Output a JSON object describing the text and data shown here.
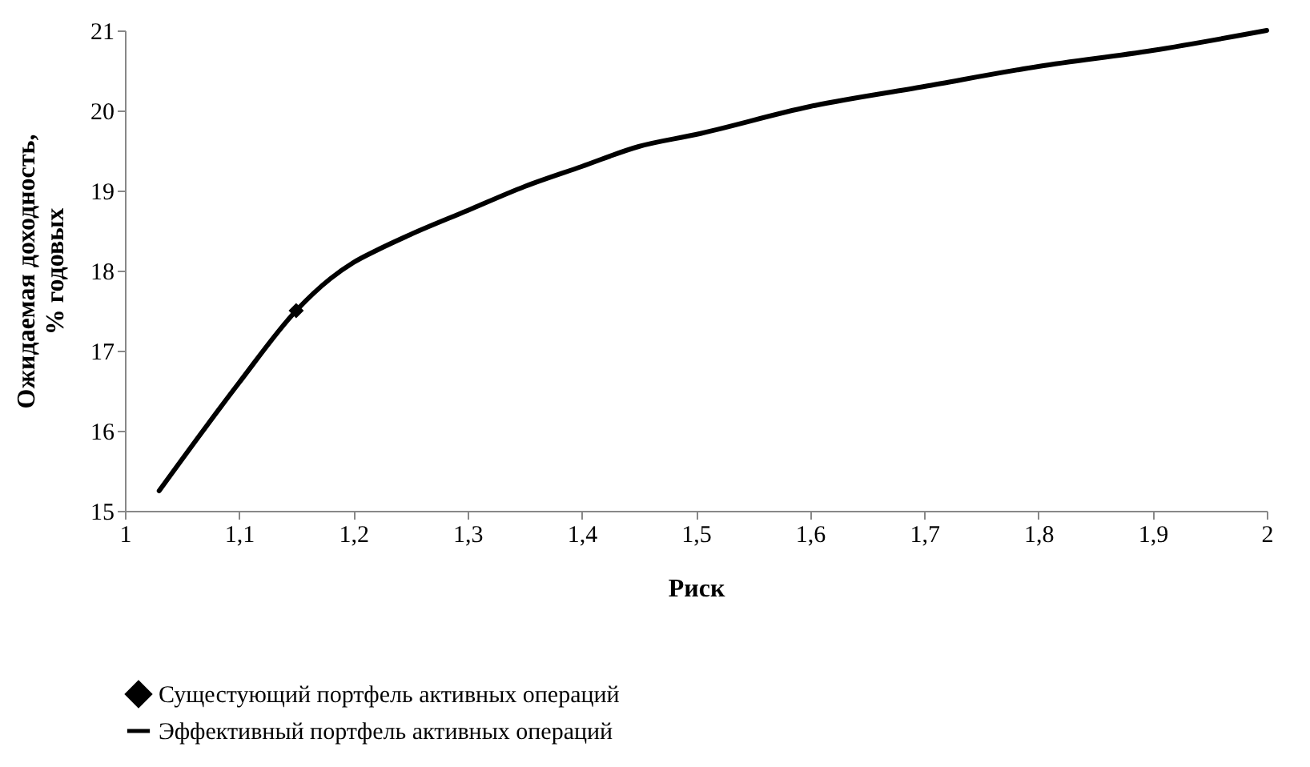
{
  "chart_data": {
    "type": "line",
    "xlabel": "Риск",
    "ylabel": "Ожидаемая доходность, % годовых",
    "xlim": [
      1,
      2
    ],
    "xticks": [
      1,
      {
        "value": 1.1,
        "label": "1,1"
      },
      {
        "value": 1.2,
        "label": "1,2"
      },
      {
        "value": 1.3,
        "label": "1,3"
      },
      {
        "value": 1.4,
        "label": "1,4"
      },
      {
        "value": 1.5,
        "label": "1,5"
      },
      {
        "value": 1.6,
        "label": "1,6"
      },
      {
        "value": 1.7,
        "label": "1,7"
      },
      {
        "value": 1.8,
        "label": "1,8"
      },
      {
        "value": 1.9,
        "label": "1,9"
      },
      2
    ],
    "ylim": [
      15,
      21
    ],
    "yticks": [
      15,
      16,
      17,
      18,
      19,
      20,
      21
    ],
    "grid": false,
    "legend": "bottom",
    "series": [
      {
        "name": "Сущестующий портфель активных операций",
        "color": "#000000",
        "marker": "diamond",
        "x": [
          1.15
        ],
        "values": [
          17.5
        ]
      },
      {
        "name": "Эффективный портфель активных операций",
        "color": "#000000",
        "marker": "none",
        "x": [
          1.03,
          1.1,
          1.15,
          1.18,
          1.2,
          1.22,
          1.25,
          1.3,
          1.35,
          1.4,
          1.45,
          1.5,
          1.6,
          1.7,
          1.8,
          1.9,
          2.0
        ],
        "values": [
          15.25,
          16.6,
          17.5,
          17.9,
          18.1,
          18.25,
          18.45,
          18.75,
          19.05,
          19.3,
          19.55,
          19.7,
          20.05,
          20.3,
          20.55,
          20.75,
          21.0
        ]
      }
    ]
  }
}
